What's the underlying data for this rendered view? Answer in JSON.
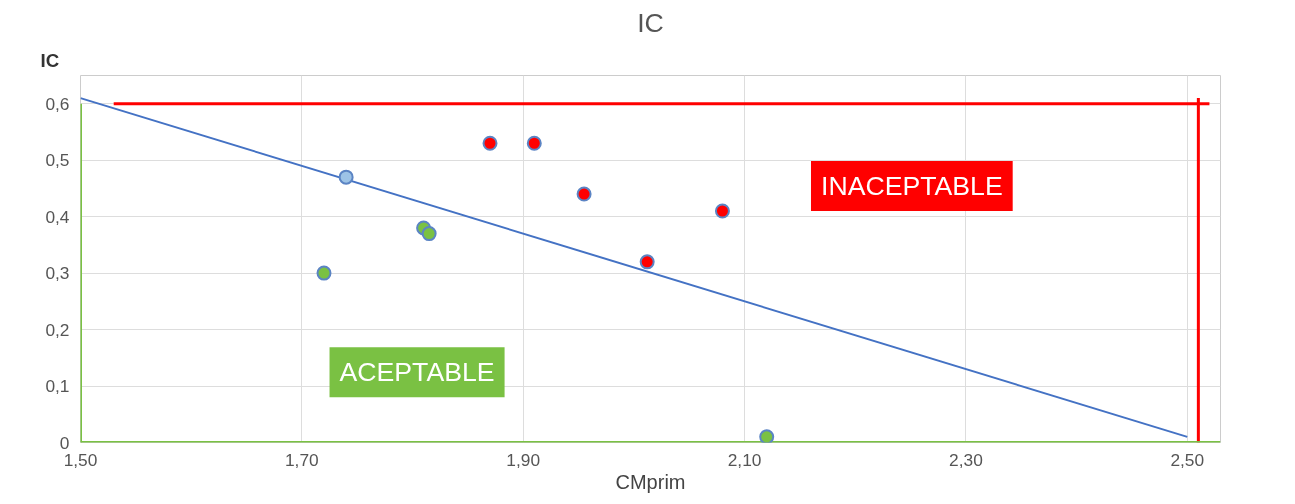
{
  "chart_data": {
    "type": "scatter",
    "title": "IC",
    "xlabel": "CMprim",
    "ylabel": "IC",
    "xlim": [
      1.5,
      2.53
    ],
    "ylim": [
      0,
      0.65
    ],
    "xticks": [
      {
        "value": 1.5,
        "label": "1,50"
      },
      {
        "value": 1.7,
        "label": "1,70"
      },
      {
        "value": 1.9,
        "label": "1,90"
      },
      {
        "value": 2.1,
        "label": "2,10"
      },
      {
        "value": 2.3,
        "label": "2,30"
      },
      {
        "value": 2.5,
        "label": "2,50"
      }
    ],
    "yticks": [
      0,
      {
        "value": 0.1,
        "label": "0,1"
      },
      {
        "value": 0.2,
        "label": "0,2"
      },
      {
        "value": 0.3,
        "label": "0,3"
      },
      {
        "value": 0.4,
        "label": "0,4"
      },
      {
        "value": 0.5,
        "label": "0,5"
      },
      {
        "value": 0.6,
        "label": "0,6"
      }
    ],
    "grid": true,
    "annotations": [
      "INACEPTABLE",
      "ACEPTABLE"
    ],
    "series": [
      {
        "type": "line",
        "color": "#ff0000",
        "x": [
          1.53,
          2.52
        ],
        "values": [
          0.6,
          0.6
        ]
      },
      {
        "type": "line",
        "color": "#ff0000",
        "x": [
          2.51,
          2.51
        ],
        "values": [
          0,
          0.61
        ]
      },
      {
        "type": "line",
        "color": "#7ac143",
        "x": [
          1.5,
          1.5
        ],
        "values": [
          0,
          0.6
        ]
      },
      {
        "type": "line",
        "color": "#7ac143",
        "x": [
          1.5,
          2.53
        ],
        "values": [
          0,
          0
        ]
      },
      {
        "type": "line",
        "color": "#4472c4",
        "x": [
          1.5,
          2.5
        ],
        "values": [
          0.61,
          0.01
        ]
      },
      {
        "marker": "circle",
        "color": "#7ac143",
        "x": [
          1.72,
          1.81,
          1.815,
          2.12
        ],
        "values": [
          0.3,
          0.38,
          0.37,
          0.01
        ]
      },
      {
        "marker": "circle",
        "color": "#ff0000",
        "x": [
          1.87,
          1.91,
          1.955,
          2.012,
          2.08
        ],
        "values": [
          0.53,
          0.53,
          0.44,
          0.32,
          0.41
        ]
      },
      {
        "marker": "circle",
        "color": "#9dc3e6",
        "x": [
          1.74
        ],
        "values": [
          0.47
        ]
      }
    ]
  }
}
